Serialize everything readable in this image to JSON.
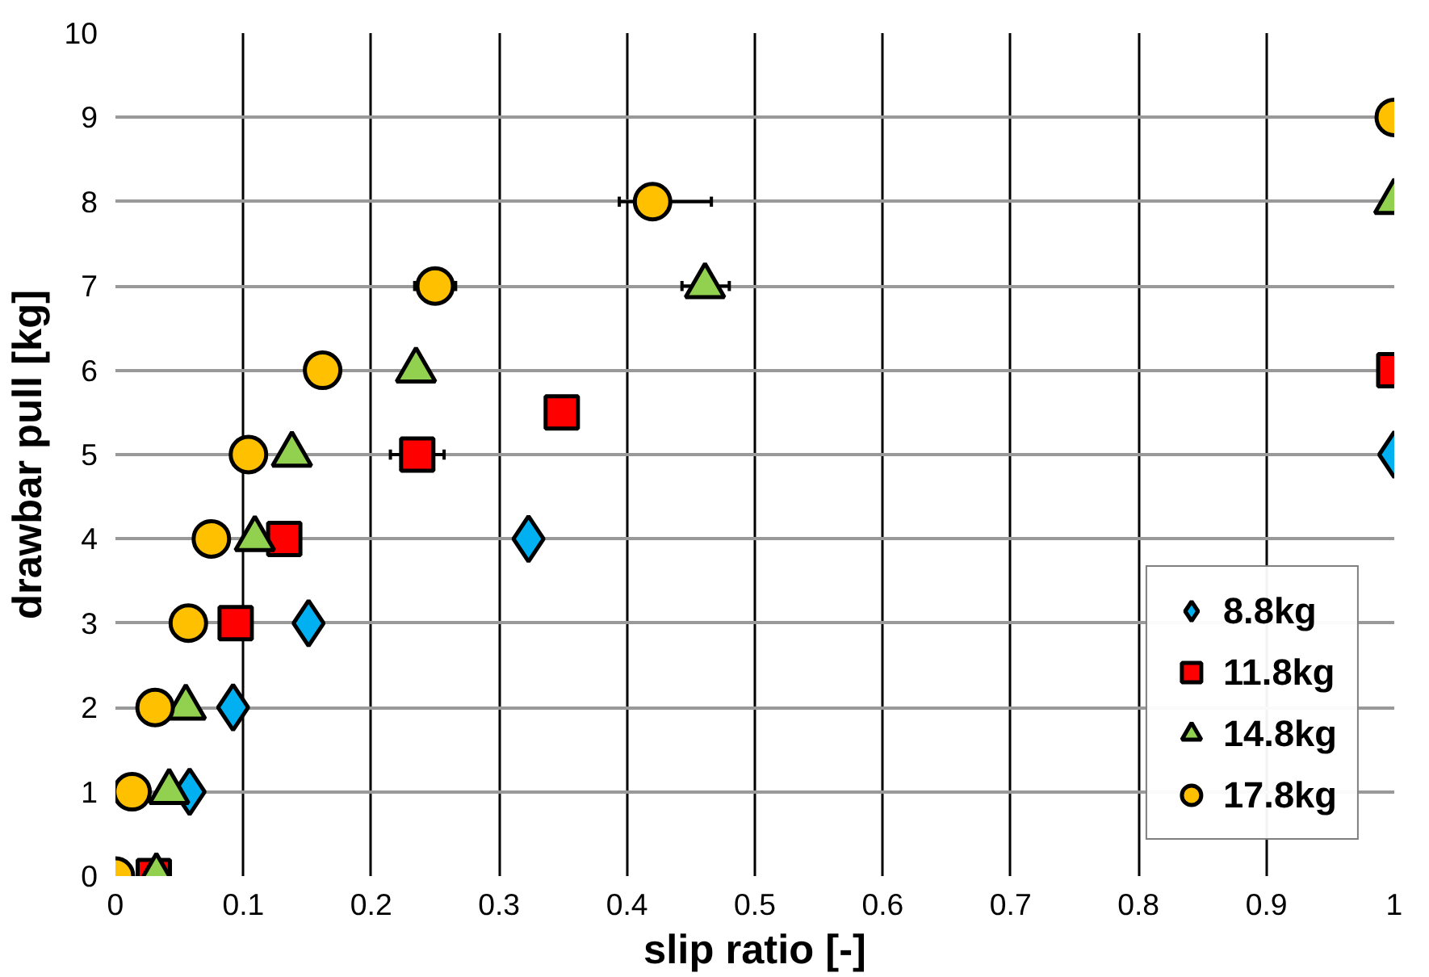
{
  "chart_data": {
    "type": "scatter",
    "xlabel": "slip ratio [-]",
    "ylabel": "drawbar pull [kg]",
    "xlim": [
      0,
      1
    ],
    "xticks": [
      0,
      0.1,
      0.2,
      0.3,
      0.4,
      0.5,
      0.6,
      0.7,
      0.8,
      0.9,
      1
    ],
    "ylim": [
      0,
      10
    ],
    "yticks": [
      0,
      1,
      2,
      3,
      4,
      5,
      6,
      7,
      8,
      9,
      10
    ],
    "grid": true,
    "legend": "bottom right",
    "series": [
      {
        "name": "8.8kg",
        "color": "#00b0f0",
        "marker": "diamond",
        "x": [
          0.058,
          0.092,
          0.151,
          0.323,
          1.0
        ],
        "values": [
          1,
          2,
          3,
          4,
          5
        ]
      },
      {
        "name": "11.8kg",
        "color": "#ff0000",
        "marker": "square",
        "x": [
          0.03,
          0.035,
          0.047,
          0.094,
          0.132,
          0.236,
          0.349,
          1.0
        ],
        "values": [
          0,
          null,
          null,
          3,
          4,
          5,
          5.5,
          6
        ],
        "xerrors": [
          null,
          null,
          null,
          null,
          null,
          0.021,
          null,
          null
        ]
      },
      {
        "name": "14.8kg",
        "color": "#92d050",
        "marker": "triangle",
        "x": [
          0.032,
          0.042,
          0.055,
          0.07,
          0.109,
          0.138,
          0.235,
          0.461,
          1.0
        ],
        "values": [
          0,
          1,
          2,
          null,
          4,
          5,
          6,
          7,
          8
        ],
        "xerrors": [
          null,
          null,
          null,
          null,
          null,
          null,
          null,
          [
            0.443,
            0.48
          ],
          null
        ]
      },
      {
        "name": "17.8kg",
        "color": "#ffc000",
        "marker": "circle",
        "x": [
          0.0,
          0.013,
          0.031,
          0.057,
          0.075,
          0.104,
          0.162,
          0.25,
          0.42,
          1.0
        ],
        "values": [
          0,
          1,
          2,
          3,
          4,
          5,
          6,
          7,
          8,
          9
        ],
        "xerrors": [
          null,
          null,
          null,
          null,
          null,
          null,
          null,
          0.016,
          [
            0.394,
            0.466
          ],
          null
        ]
      }
    ]
  }
}
